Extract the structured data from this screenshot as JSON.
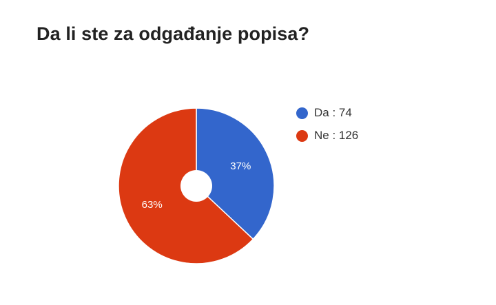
{
  "chart_data": {
    "type": "pie",
    "title": "Da li ste za odgađanje popisa?",
    "donut_hole": true,
    "slices": [
      {
        "name": "Da",
        "value": 74,
        "percent_label": "37%",
        "color": "#3366cc"
      },
      {
        "name": "Ne",
        "value": 126,
        "percent_label": "63%",
        "color": "#dc3912"
      }
    ],
    "legend": {
      "position": "right",
      "entries": [
        "Da : 74",
        "Ne : 126"
      ]
    }
  }
}
